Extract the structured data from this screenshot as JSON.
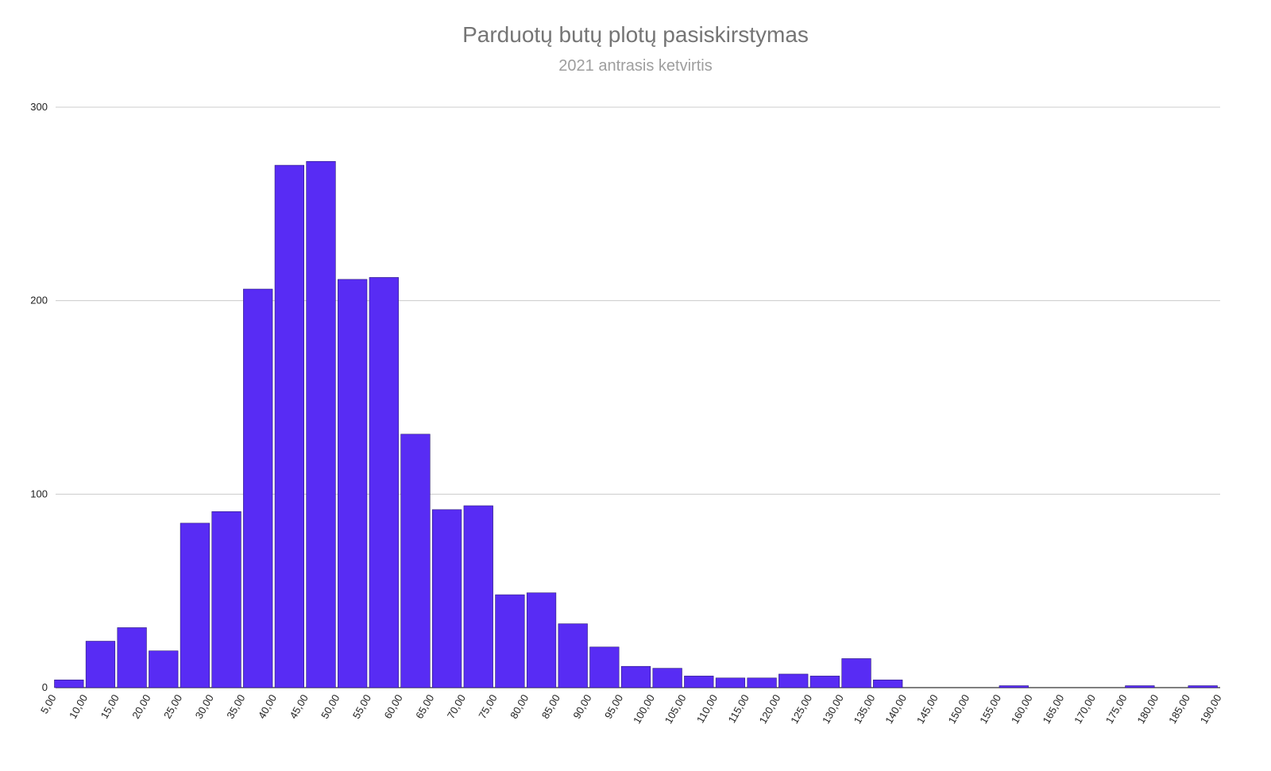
{
  "chart_data": {
    "type": "bar",
    "title": "Parduotų butų plotų pasiskirstymas",
    "subtitle": "2021 antrasis ketvirtis",
    "xlabel": "",
    "ylabel": "",
    "ylim": [
      0,
      300
    ],
    "y_ticks": [
      "0",
      "100",
      "200",
      "300"
    ],
    "grid": true,
    "x_ticks": [
      "5,00",
      "10,00",
      "15,00",
      "20,00",
      "25,00",
      "30,00",
      "35,00",
      "40,00",
      "45,00",
      "50,00",
      "55,00",
      "60,00",
      "65,00",
      "70,00",
      "75,00",
      "80,00",
      "85,00",
      "90,00",
      "95,00",
      "100,00",
      "105,00",
      "110,00",
      "115,00",
      "120,00",
      "125,00",
      "130,00",
      "135,00",
      "140,00",
      "145,00",
      "150,00",
      "155,00",
      "160,00",
      "165,00",
      "170,00",
      "175,00",
      "180,00",
      "185,00",
      "190,00"
    ],
    "values": [
      4,
      24,
      31,
      19,
      85,
      91,
      206,
      270,
      272,
      211,
      212,
      131,
      92,
      94,
      48,
      49,
      33,
      21,
      11,
      10,
      6,
      5,
      5,
      7,
      6,
      15,
      4,
      0,
      0,
      0,
      1,
      0,
      0,
      0,
      1,
      0,
      1
    ],
    "bar_color": "#582cf4"
  }
}
